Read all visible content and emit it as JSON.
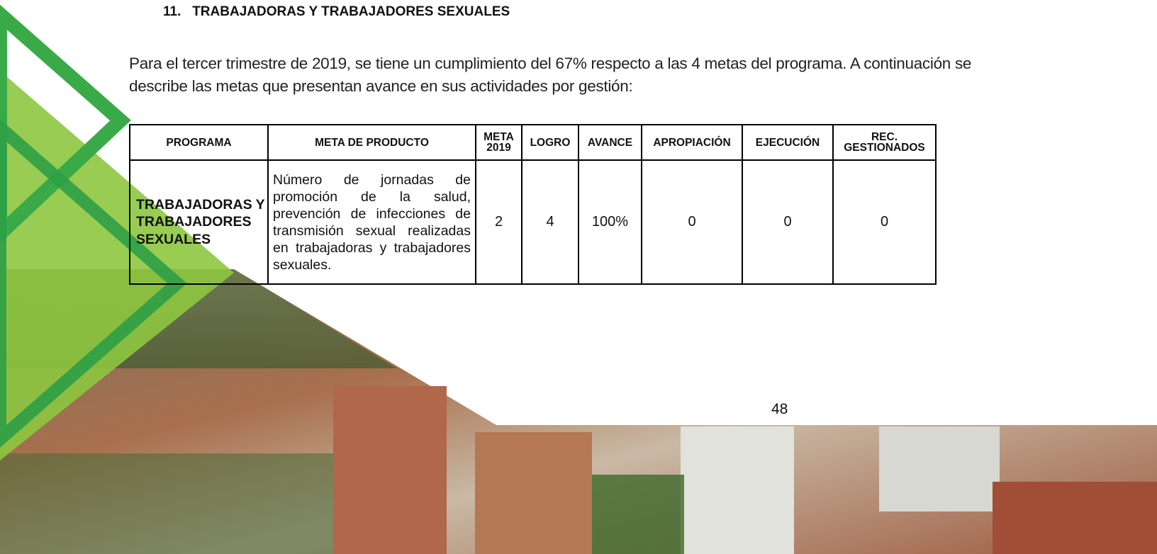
{
  "heading": "11.   TRABAJADORAS Y TRABAJADORES SEXUALES",
  "paragraph": "Para el tercer trimestre de 2019, se tiene un cumplimiento del 67% respecto a las 4 metas del programa. A continuación se describe las metas que presentan avance en sus actividades por gestión:",
  "table": {
    "header": [
      "PROGRAMA",
      "META DE PRODUCTO",
      "META 2019",
      "LOGRO",
      "AVANCE",
      "APROPIACIÓN",
      "EJECUCIÓN",
      "REC. GESTIONADOS"
    ],
    "rows": [
      [
        "TRABAJADORAS Y TRABAJADORES SEXUALES",
        "Número de jornadas de promoción de la salud, prevención de infecciones de transmisión sexual realizadas en trabajadoras y trabajadores sexuales.",
        "2",
        "4",
        "100%",
        "0",
        "0",
        "0"
      ]
    ]
  },
  "page_number": "48"
}
